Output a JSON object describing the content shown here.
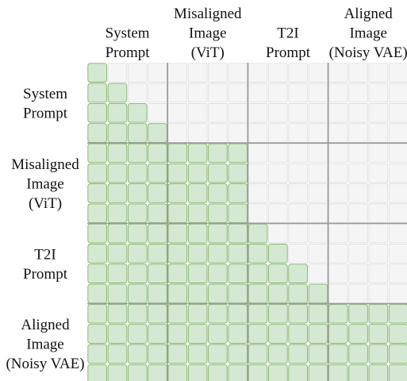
{
  "groups": [
    {
      "id": "system",
      "lines": [
        "System",
        "Prompt"
      ],
      "size": 4,
      "mask": "causal"
    },
    {
      "id": "misaligned",
      "lines": [
        "Misaligned",
        "Image",
        "(ViT)"
      ],
      "size": 4,
      "mask": "full"
    },
    {
      "id": "t2i",
      "lines": [
        "T2I",
        "Prompt"
      ],
      "size": 4,
      "mask": "causal"
    },
    {
      "id": "aligned",
      "lines": [
        "Aligned",
        "Image",
        "(Noisy VAE)"
      ],
      "size": 4,
      "mask": "full"
    }
  ],
  "colors": {
    "attended_fill": "#d5e8d4",
    "attended_stroke": "#82b366",
    "masked_fill": "#f5f5f5",
    "masked_stroke": "#d9d9d9",
    "group_divider": "#9a9a9a"
  }
}
